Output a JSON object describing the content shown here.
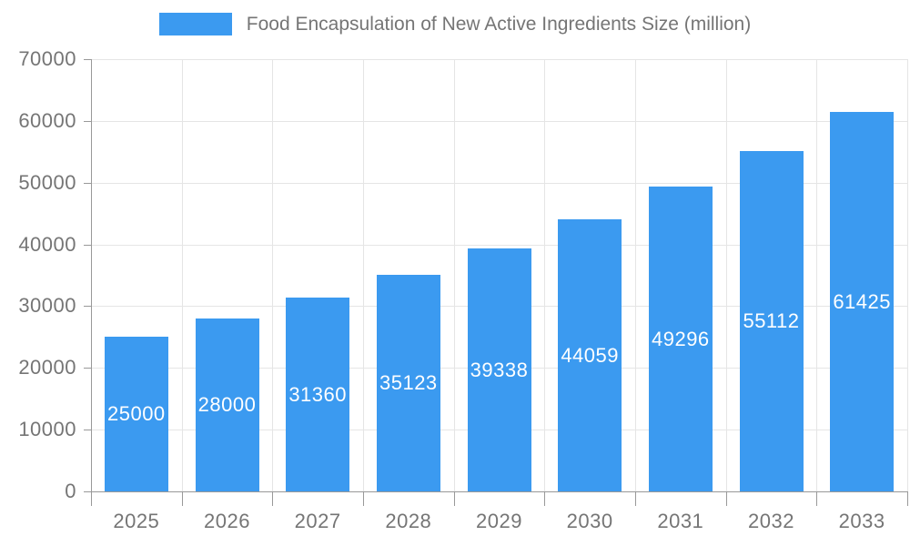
{
  "chart_data": {
    "type": "bar",
    "title": "Food Encapsulation of New Active Ingredients Size (million)",
    "legend": [
      "Food Encapsulation of New Active Ingredients Size (million)"
    ],
    "legend_position": "top",
    "categories": [
      "2025",
      "2026",
      "2027",
      "2028",
      "2029",
      "2030",
      "2031",
      "2032",
      "2033"
    ],
    "values": [
      25000,
      28000,
      31360,
      35123,
      39338,
      44059,
      49296,
      55112,
      61425
    ],
    "value_labels": [
      "25000",
      "28000",
      "31360",
      "35123",
      "39338",
      "44059",
      "49296",
      "55112",
      "61425"
    ],
    "xlabel": "",
    "ylabel": "",
    "ylim": [
      0,
      70000
    ],
    "ytick_step": 10000,
    "ytick_labels": [
      "0",
      "10000",
      "20000",
      "30000",
      "40000",
      "50000",
      "60000",
      "70000"
    ],
    "grid": true,
    "value_labels_inside_bars": true,
    "colors": {
      "bar": "#3B9AF0",
      "grid_line": "#E5E5E5",
      "axis_line": "#999999",
      "tick_label": "#757575",
      "legend_text": "#757575",
      "value_label": "#FFFFFF",
      "background": "#FFFFFF"
    }
  }
}
